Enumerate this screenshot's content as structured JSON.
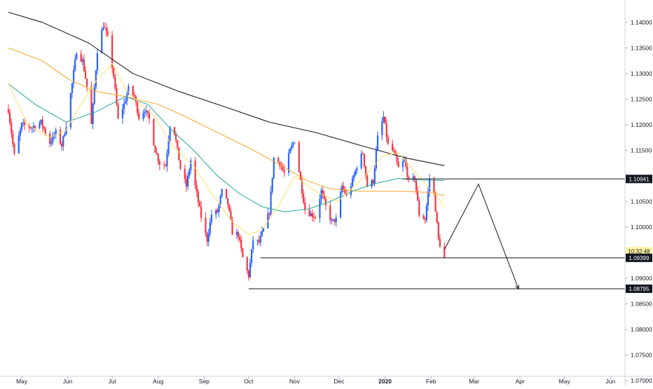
{
  "chart_data": {
    "type": "candlestick",
    "symbol": "",
    "title": "",
    "xlabel": "",
    "ylabel": "",
    "ylim": [
      1.0655,
      1.1445
    ],
    "y_ticks": [
      "1.14000",
      "1.13500",
      "1.13000",
      "1.12500",
      "1.12000",
      "1.11500",
      "1.10500",
      "1.10000",
      "1.09000",
      "1.08500",
      "1.08000",
      "1.07500",
      "1.07000"
    ],
    "x_ticks": [
      "May",
      "Jun",
      "Jul",
      "Aug",
      "Sep",
      "Oct",
      "Nov",
      "Dec",
      "2020",
      "Feb",
      "Mar",
      "Apr",
      "May",
      "Jun"
    ],
    "price_labels": [
      {
        "text": "1.10941",
        "value": 1.10941,
        "style": "dark"
      },
      {
        "text": "10:32:48",
        "value": 1.0953,
        "style": "clock"
      },
      {
        "text": "1.09399",
        "value": 1.09399,
        "style": "dark"
      },
      {
        "text": "1.08795",
        "value": 1.08795,
        "style": "dark"
      }
    ],
    "horizontal_levels": [
      {
        "value": 1.10941,
        "from": "Jan 13"
      },
      {
        "value": 1.09399,
        "from": "Oct 09"
      },
      {
        "value": 1.08795,
        "from": "Oct 01"
      }
    ],
    "projection_path": [
      {
        "date": "Feb 10",
        "value": 1.0956
      },
      {
        "date": "Mar 05",
        "value": 1.1084
      },
      {
        "date": "Apr 01",
        "value": 1.0879
      }
    ],
    "colors": {
      "up": "#2962ff",
      "down": "#f23645",
      "ma_200": "#333333",
      "ma_100": "#f5a623",
      "ma_50": "#26a69a",
      "ma_20": "#ffe066"
    },
    "series_meta": [
      {
        "key": "ma_200",
        "color": "#333333"
      },
      {
        "key": "ma_100",
        "color": "#f5a623"
      },
      {
        "key": "ma_50",
        "color": "#26a69a"
      },
      {
        "key": "ma_20",
        "color": "#ffe066"
      }
    ],
    "price_anchors": [
      [
        "Apr 22",
        1.123
      ],
      [
        "Apr 26",
        1.114
      ],
      [
        "May 01",
        1.12
      ],
      [
        "May 08",
        1.1195
      ],
      [
        "May 14",
        1.1205
      ],
      [
        "May 20",
        1.1165
      ],
      [
        "May 24",
        1.1185
      ],
      [
        "May 28",
        1.116
      ],
      [
        "May 31",
        1.12
      ],
      [
        "Jun 04",
        1.128
      ],
      [
        "Jun 07",
        1.1345
      ],
      [
        "Jun 11",
        1.1325
      ],
      [
        "Jun 14",
        1.1275
      ],
      [
        "Jun 17",
        1.12
      ],
      [
        "Jun 21",
        1.1345
      ],
      [
        "Jun 25",
        1.1395
      ],
      [
        "Jun 28",
        1.137
      ],
      [
        "Jul 02",
        1.1295
      ],
      [
        "Jul 05",
        1.121
      ],
      [
        "Jul 09",
        1.124
      ],
      [
        "Jul 12",
        1.127
      ],
      [
        "Jul 16",
        1.1255
      ],
      [
        "Jul 19",
        1.1215
      ],
      [
        "Jul 23",
        1.123
      ],
      [
        "Jul 26",
        1.121
      ],
      [
        "Jul 30",
        1.115
      ],
      [
        "Aug 02",
        1.1125
      ],
      [
        "Aug 06",
        1.112
      ],
      [
        "Aug 09",
        1.12
      ],
      [
        "Aug 12",
        1.1185
      ],
      [
        "Aug 16",
        1.1115
      ],
      [
        "Aug 20",
        1.108
      ],
      [
        "Aug 23",
        1.113
      ],
      [
        "Aug 26",
        1.108
      ],
      [
        "Aug 30",
        1.102
      ],
      [
        "Sep 03",
        1.0975
      ],
      [
        "Sep 06",
        1.1025
      ],
      [
        "Sep 10",
        1.103
      ],
      [
        "Sep 13",
        1.107
      ],
      [
        "Sep 17",
        1.1045
      ],
      [
        "Sep 20",
        1.099
      ],
      [
        "Sep 24",
        1.0985
      ],
      [
        "Sep 27",
        1.094
      ],
      [
        "Oct 01",
        1.0905
      ],
      [
        "Oct 04",
        1.0975
      ],
      [
        "Oct 08",
        1.097
      ],
      [
        "Oct 11",
        1.0995
      ],
      [
        "Oct 15",
        1.103
      ],
      [
        "Oct 18",
        1.1135
      ],
      [
        "Oct 22",
        1.1125
      ],
      [
        "Oct 25",
        1.1105
      ],
      [
        "Oct 29",
        1.115
      ],
      [
        "Nov 01",
        1.117
      ],
      [
        "Nov 05",
        1.109
      ],
      [
        "Nov 08",
        1.1035
      ],
      [
        "Nov 12",
        1.1025
      ],
      [
        "Nov 15",
        1.102
      ],
      [
        "Nov 19",
        1.107
      ],
      [
        "Nov 22",
        1.104
      ],
      [
        "Nov 26",
        1.101
      ],
      [
        "Nov 29",
        1.1015
      ],
      [
        "Dec 03",
        1.108
      ],
      [
        "Dec 06",
        1.106
      ],
      [
        "Dec 10",
        1.109
      ],
      [
        "Dec 13",
        1.112
      ],
      [
        "Dec 17",
        1.1145
      ],
      [
        "Dec 20",
        1.108
      ],
      [
        "Dec 24",
        1.109
      ],
      [
        "Dec 27",
        1.1175
      ],
      [
        "Dec 31",
        1.1215
      ],
      [
        "Jan 03",
        1.116
      ],
      [
        "Jan 07",
        1.1145
      ],
      [
        "Jan 10",
        1.1115
      ],
      [
        "Jan 14",
        1.113
      ],
      [
        "Jan 17",
        1.109
      ],
      [
        "Jan 21",
        1.1095
      ],
      [
        "Jan 24",
        1.1025
      ],
      [
        "Jan 28",
        1.1015
      ],
      [
        "Jan 31",
        1.1095
      ],
      [
        "Feb 03",
        1.1065
      ],
      [
        "Feb 06",
        1.0975
      ],
      [
        "Feb 10",
        1.094
      ]
    ],
    "ma_200": [
      [
        "Apr 22",
        1.142
      ],
      [
        "May 15",
        1.14
      ],
      [
        "Jun 15",
        1.136
      ],
      [
        "Jul 15",
        1.13
      ],
      [
        "Aug 15",
        1.1265
      ],
      [
        "Sep 15",
        1.1235
      ],
      [
        "Oct 15",
        1.1205
      ],
      [
        "Nov 15",
        1.1185
      ],
      [
        "Dec 15",
        1.116
      ],
      [
        "Jan 15",
        1.1135
      ],
      [
        "Feb 10",
        1.112
      ]
    ],
    "ma_100": [
      [
        "Apr 22",
        1.135
      ],
      [
        "May 15",
        1.1325
      ],
      [
        "Jun 01",
        1.129
      ],
      [
        "Jun 20",
        1.1265
      ],
      [
        "Jul 10",
        1.1255
      ],
      [
        "Aug 01",
        1.124
      ],
      [
        "Aug 20",
        1.1215
      ],
      [
        "Sep 10",
        1.1185
      ],
      [
        "Oct 01",
        1.1155
      ],
      [
        "Oct 20",
        1.1125
      ],
      [
        "Nov 10",
        1.109
      ],
      [
        "Nov 25",
        1.1075
      ],
      [
        "Dec 15",
        1.107
      ],
      [
        "Jan 10",
        1.107
      ],
      [
        "Jan 30",
        1.1068
      ],
      [
        "Feb 10",
        1.1062
      ]
    ],
    "ma_50": [
      [
        "Apr 22",
        1.128
      ],
      [
        "May 10",
        1.124
      ],
      [
        "May 31",
        1.1205
      ],
      [
        "Jun 20",
        1.1225
      ],
      [
        "Jul 10",
        1.1255
      ],
      [
        "Jul 25",
        1.124
      ],
      [
        "Aug 10",
        1.119
      ],
      [
        "Aug 25",
        1.115
      ],
      [
        "Sep 10",
        1.11
      ],
      [
        "Sep 25",
        1.1065
      ],
      [
        "Oct 10",
        1.104
      ],
      [
        "Oct 25",
        1.103
      ],
      [
        "Nov 10",
        1.1035
      ],
      [
        "Nov 25",
        1.105
      ],
      [
        "Dec 10",
        1.107
      ],
      [
        "Dec 25",
        1.1085
      ],
      [
        "Jan 10",
        1.1095
      ],
      [
        "Jan 25",
        1.1092
      ],
      [
        "Feb 10",
        1.1091
      ]
    ],
    "ma_20": [
      [
        "Apr 22",
        1.128
      ],
      [
        "May 05",
        1.12
      ],
      [
        "May 20",
        1.1175
      ],
      [
        "May 31",
        1.119
      ],
      [
        "Jun 10",
        1.124
      ],
      [
        "Jun 20",
        1.1285
      ],
      [
        "Jul 01",
        1.132
      ],
      [
        "Jul 10",
        1.127
      ],
      [
        "Jul 20",
        1.124
      ],
      [
        "Jul 30",
        1.1215
      ],
      [
        "Aug 10",
        1.116
      ],
      [
        "Aug 25",
        1.112
      ],
      [
        "Sep 05",
        1.107
      ],
      [
        "Sep 20",
        1.101
      ],
      [
        "Oct 01",
        1.0985
      ],
      [
        "Oct 10",
        1.0995
      ],
      [
        "Oct 20",
        1.1035
      ],
      [
        "Nov 01",
        1.11
      ],
      [
        "Nov 15",
        1.107
      ],
      [
        "Nov 30",
        1.105
      ],
      [
        "Dec 15",
        1.109
      ],
      [
        "Dec 31",
        1.114
      ],
      [
        "Jan 10",
        1.1145
      ],
      [
        "Jan 25",
        1.1095
      ],
      [
        "Feb 05",
        1.106
      ],
      [
        "Feb 10",
        1.104
      ]
    ]
  }
}
